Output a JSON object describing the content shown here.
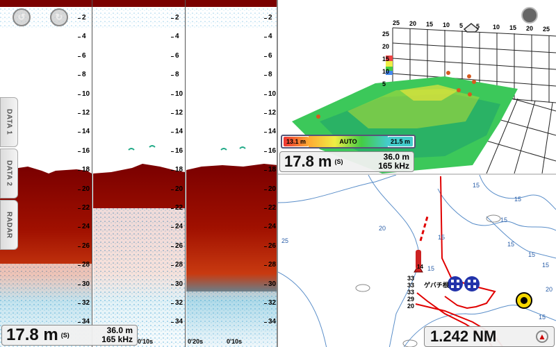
{
  "sonar": {
    "depth_ticks": [
      "2",
      "4",
      "6",
      "8",
      "10",
      "12",
      "14",
      "16",
      "18",
      "20",
      "22",
      "24",
      "26",
      "28",
      "30",
      "32",
      "34"
    ],
    "depth_reading": "17.8 m",
    "depth_mode": "(S)",
    "range": "36.0 m",
    "frequency": "165 kHz",
    "time_labels": [
      "0'10s",
      "0'20s",
      "0'10s"
    ],
    "side_tabs": [
      "DATA 1",
      "DATA 2",
      "RADAR"
    ]
  },
  "view3d": {
    "depth_reading": "17.8 m",
    "depth_mode": "(S)",
    "range": "36.0 m",
    "frequency": "165 kHz",
    "scale_min": "13.1 m",
    "scale_mode": "AUTO",
    "scale_max": "21.5 m",
    "axis_labels_left": [
      "25",
      "20",
      "15",
      "10",
      "5"
    ],
    "axis_labels_top": [
      "25",
      "20",
      "15",
      "10",
      "5",
      "5",
      "10",
      "15",
      "20",
      "25"
    ]
  },
  "chart": {
    "distance": "1.242 NM",
    "depth_marks": [
      "15",
      "15",
      "15",
      "20",
      "25",
      "15",
      "15",
      "15",
      "15",
      "15",
      "20",
      "15"
    ],
    "waypoint_labels": [
      "33",
      "33",
      "33",
      "29",
      "20"
    ],
    "place_name": "ゲバチ根",
    "marker_label": "14"
  },
  "colors": {
    "sonar_red": "#8b0000",
    "track_red": "#e00000",
    "scale_border": "#335"
  }
}
